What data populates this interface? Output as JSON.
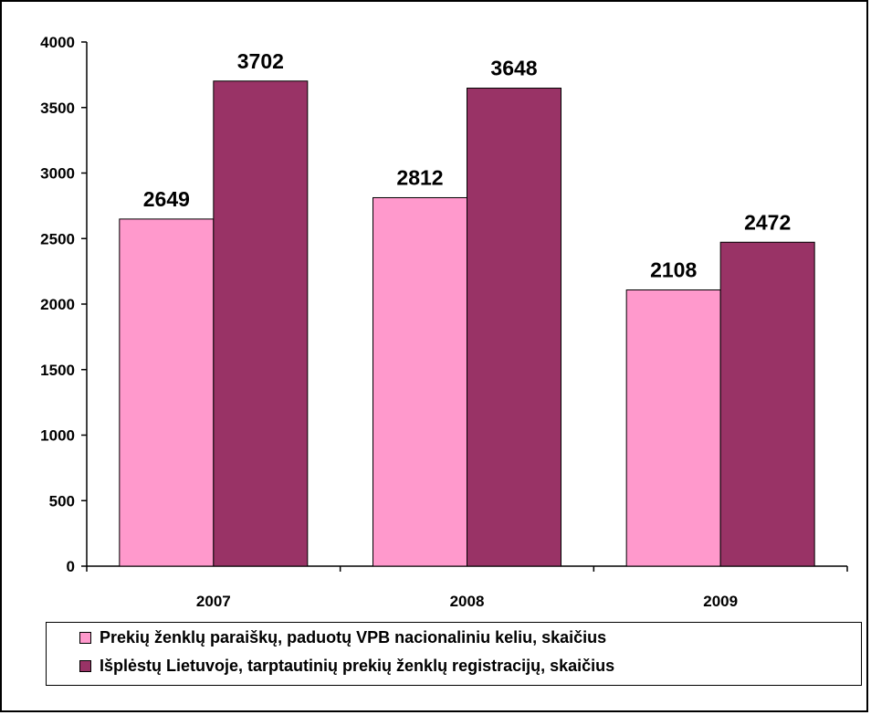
{
  "chart_data": {
    "type": "bar",
    "categories": [
      "2007",
      "2008",
      "2009"
    ],
    "series": [
      {
        "name": "Prekių ženklų paraiškų, paduotų VPB nacionaliniu keliu, skaičius",
        "values": [
          2649,
          2812,
          2108
        ],
        "color": "#ff99cc"
      },
      {
        "name": "Išplėstų Lietuvoje, tarptautinių prekių ženklų registracijų, skaičius",
        "values": [
          3702,
          3648,
          2472
        ],
        "color": "#993366"
      }
    ],
    "ylim": [
      0,
      4000
    ],
    "yticks": [
      "0",
      "500",
      "1000",
      "1500",
      "2000",
      "2500",
      "3000",
      "3500",
      "4000"
    ],
    "title": "",
    "xlabel": "",
    "ylabel": "",
    "grid": false,
    "legend_position": "bottom",
    "data_labels": true
  }
}
